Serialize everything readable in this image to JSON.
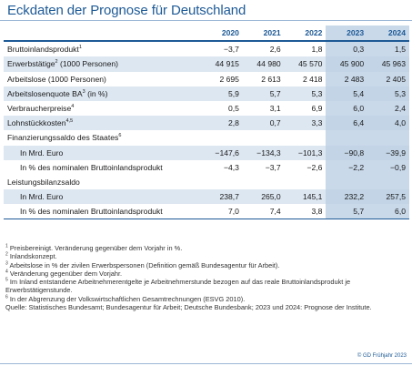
{
  "title": "Eckdaten der Prognose für Deutschland",
  "columns": [
    "2020",
    "2021",
    "2022",
    "2023",
    "2024"
  ],
  "forecast_columns": [
    "2023",
    "2024"
  ],
  "rows": [
    {
      "label": "Bruttoinlandsprodukt",
      "sup": "1",
      "values": [
        "−3,7",
        "2,6",
        "1,8",
        "0,3",
        "1,5"
      ],
      "indent": false,
      "shade": false
    },
    {
      "label": "Erwerbstätige",
      "sup": "2",
      "label_suffix": " (1000 Personen)",
      "values": [
        "44 915",
        "44 980",
        "45 570",
        "45 900",
        "45 963"
      ],
      "indent": false,
      "shade": true
    },
    {
      "label": "Arbeitslose (1000 Personen)",
      "sup": "",
      "values": [
        "2 695",
        "2 613",
        "2 418",
        "2 483",
        "2 405"
      ],
      "indent": false,
      "shade": false
    },
    {
      "label": "Arbeitslosenquote BA",
      "sup": "3",
      "label_suffix": " (in %)",
      "values": [
        "5,9",
        "5,7",
        "5,3",
        "5,4",
        "5,3"
      ],
      "indent": false,
      "shade": true
    },
    {
      "label": "Verbraucherpreise",
      "sup": "4",
      "values": [
        "0,5",
        "3,1",
        "6,9",
        "6,0",
        "2,4"
      ],
      "indent": false,
      "shade": false
    },
    {
      "label": "Lohnstückkosten",
      "sup": "4,5",
      "values": [
        "2,8",
        "0,7",
        "3,3",
        "6,4",
        "4,0"
      ],
      "indent": false,
      "shade": true
    },
    {
      "label": "Finanzierungssaldo des Staates",
      "sup": "6",
      "values": [
        "",
        "",
        "",
        "",
        ""
      ],
      "indent": false,
      "shade": false
    },
    {
      "label": "In Mrd. Euro",
      "sup": "",
      "values": [
        "−147,6",
        "−134,3",
        "−101,3",
        "−90,8",
        "−39,9"
      ],
      "indent": true,
      "shade": true
    },
    {
      "label": "In % des nominalen Bruttoinlandsprodukt",
      "sup": "",
      "values": [
        "−4,3",
        "−3,7",
        "−2,6",
        "−2,2",
        "−0,9"
      ],
      "indent": true,
      "shade": false
    },
    {
      "label": "Leistungsbilanzsaldo",
      "sup": "",
      "values": [
        "",
        "",
        "",
        "",
        ""
      ],
      "indent": false,
      "shade": false
    },
    {
      "label": "In Mrd. Euro",
      "sup": "",
      "values": [
        "238,7",
        "265,0",
        "145,1",
        "232,2",
        "257,5"
      ],
      "indent": true,
      "shade": true
    },
    {
      "label": "In % des nominalen Bruttoinlandsprodukt",
      "sup": "",
      "values": [
        "7,0",
        "7,4",
        "3,8",
        "5,7",
        "6,0"
      ],
      "indent": true,
      "shade": false
    }
  ],
  "footnotes": [
    {
      "sup": "1",
      "text": "Preisbereinigt. Veränderung gegenüber dem Vorjahr in %."
    },
    {
      "sup": "2",
      "text": "Inlandskonzept."
    },
    {
      "sup": "3",
      "text": "Arbeitslose in % der zivilen Erwerbspersonen (Definition gemäß Bundesagentur für Arbeit)."
    },
    {
      "sup": "4",
      "text": "Veränderung gegenüber dem Vorjahr."
    },
    {
      "sup": "5",
      "text": "Im Inland entstandene Arbeitnehmerentgelte je Arbeitnehmerstunde bezogen auf das reale Bruttoinlandsprodukt je Erwerbstätigenstunde."
    },
    {
      "sup": "6",
      "text": "In der Abgrenzung der Volkswirtschaftlichen Gesamtrechnungen (ESVG 2010)."
    }
  ],
  "source": "Quelle: Statistisches Bundesamt; Bundesagentur für Arbeit; Deutsche Bundesbank; 2023 und 2024: Prognose der Institute.",
  "copyright": "© GD Frühjahr 2023",
  "colors": {
    "accent": "#1e5a96",
    "shade": "#dde7f1",
    "forecast": "#c9d9ea"
  }
}
